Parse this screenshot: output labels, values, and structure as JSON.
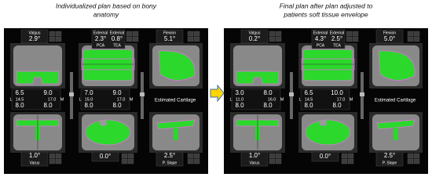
{
  "panels": [
    {
      "caption": [
        "Individualized plan based on bony",
        "anatomy"
      ],
      "top_left": {
        "label": "Valgus",
        "value": "2.9°"
      },
      "pca": {
        "label": "External",
        "value": "2.3°",
        "name": "PCA"
      },
      "tea": {
        "label": "External",
        "value": "0.8°",
        "name": "TEA"
      },
      "flexion": {
        "label": "Flexion",
        "value": "5.1°"
      },
      "gap_left": {
        "top": [
          "6.5",
          "9.0"
        ],
        "mid": [
          "L",
          "14.5",
          "17.0",
          "M"
        ],
        "bottom": [
          "8.0",
          "8.0"
        ]
      },
      "gap_center": {
        "top": [
          "7.0",
          "9.0"
        ],
        "mid": [
          "L",
          "15.0",
          "17.0",
          "M"
        ],
        "bottom": [
          "8.0",
          "8.0"
        ]
      },
      "cartilage": "Estimated Cartilage",
      "varus": {
        "value": "1.0°",
        "label": "Varus"
      },
      "rotation": {
        "value": "0.0°"
      },
      "slope": {
        "value": "2.5°",
        "label": "P. Slope"
      }
    },
    {
      "caption": [
        "Final plan after plan adjusted to",
        "patients soft tissue envelope"
      ],
      "top_left": {
        "label": "Valgus",
        "value": "0.2°"
      },
      "pca": {
        "label": "External",
        "value": "4.3°",
        "name": "PCA"
      },
      "tea": {
        "label": "External",
        "value": "2.5°",
        "name": "TEA"
      },
      "flexion": {
        "label": "Flexion",
        "value": "5.0°"
      },
      "gap_left": {
        "top": [
          "3.0",
          "8.0"
        ],
        "mid": [
          "L",
          "11.0",
          "16.0",
          "M"
        ],
        "bottom": [
          "8.0",
          "8.0"
        ]
      },
      "gap_center": {
        "top": [
          "6.5",
          "10.0"
        ],
        "mid": [
          "L",
          "14.5",
          "17.0",
          "M"
        ],
        "bottom": [
          "8.0",
          "8.0"
        ]
      },
      "cartilage": "Estimated Cartilage",
      "varus": {
        "value": "1.0°",
        "label": "Varus"
      },
      "rotation": {
        "value": "0.0°"
      },
      "slope": {
        "value": "2.5°",
        "label": "P. Slope"
      }
    }
  ]
}
